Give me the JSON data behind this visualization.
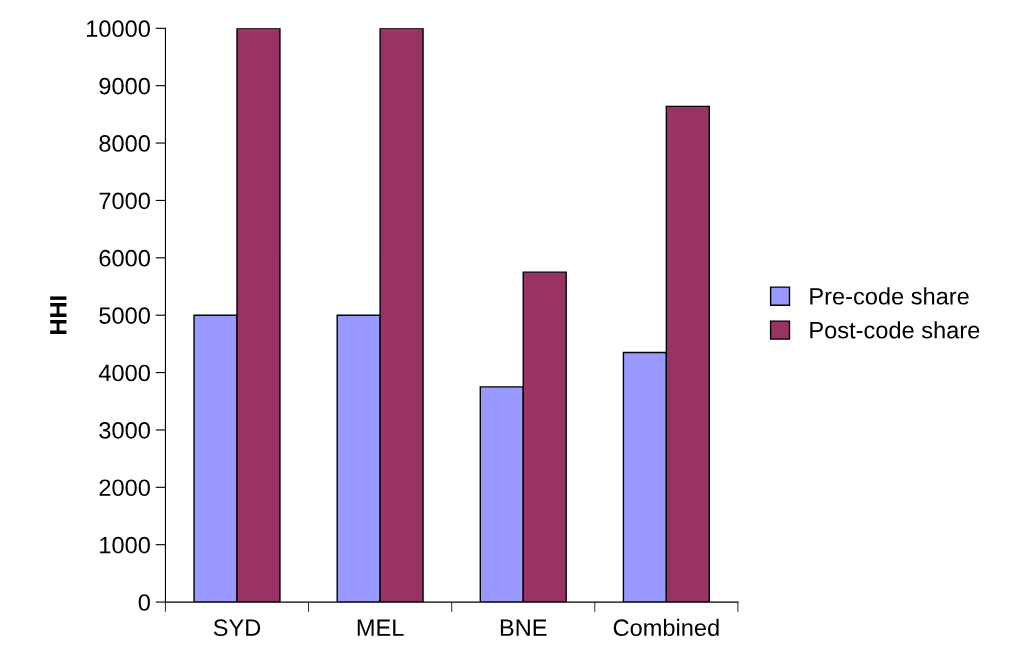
{
  "chart_data": {
    "type": "bar",
    "ylabel": "HHI",
    "categories": [
      "SYD",
      "MEL",
      "BNE",
      "Combined"
    ],
    "series": [
      {
        "name": "Pre-code share",
        "color": "#9999ff",
        "values": [
          5000,
          5000,
          3750,
          4350
        ]
      },
      {
        "name": "Post-code share",
        "color": "#993366",
        "values": [
          10000,
          10000,
          5750,
          8640
        ]
      }
    ],
    "ylim": [
      0,
      10000
    ],
    "yticks": [
      0,
      1000,
      2000,
      3000,
      4000,
      5000,
      6000,
      7000,
      8000,
      9000,
      10000
    ],
    "grid": false,
    "legend": "right"
  }
}
